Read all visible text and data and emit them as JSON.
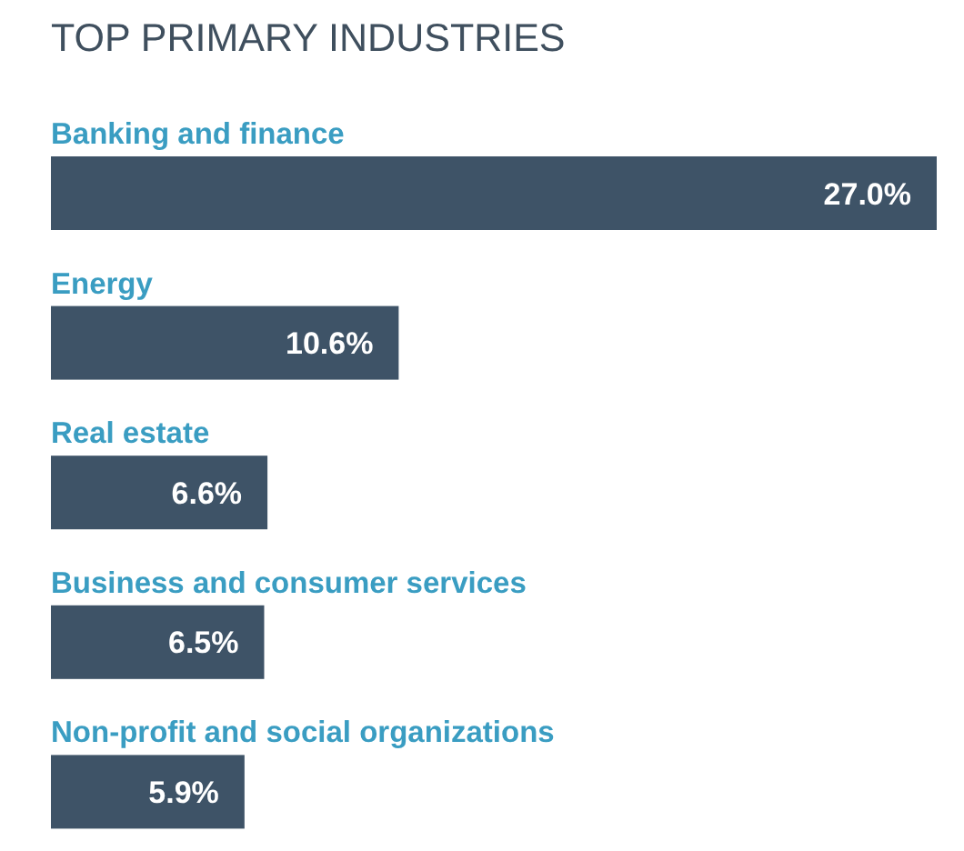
{
  "chart_data": {
    "type": "bar",
    "orientation": "horizontal",
    "title": "TOP PRIMARY INDUSTRIES",
    "categories": [
      "Banking and finance",
      "Energy",
      "Real estate",
      "Business and consumer services",
      "Non-profit and social organizations"
    ],
    "values": [
      27.0,
      10.6,
      6.6,
      6.5,
      5.9
    ],
    "value_labels": [
      "27.0%",
      "10.6%",
      "6.6%",
      "6.5%",
      "5.9%"
    ],
    "color": "#3e5367"
  }
}
